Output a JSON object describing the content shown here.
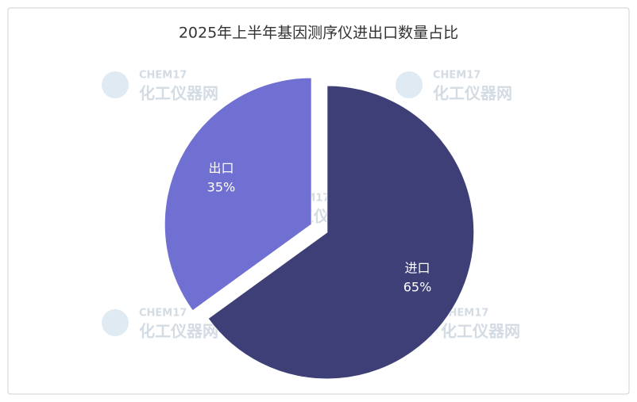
{
  "chart_data": {
    "type": "pie",
    "title": "2025年上半年基因测序仪进出口数量占比",
    "categories": [
      "进口",
      "出口"
    ],
    "values": [
      65,
      35
    ],
    "value_labels": [
      "65%",
      "35%"
    ],
    "colors": [
      "#3f3f78",
      "#7070d2"
    ],
    "watermark": [
      "CHEM17",
      "化工仪器网"
    ]
  }
}
